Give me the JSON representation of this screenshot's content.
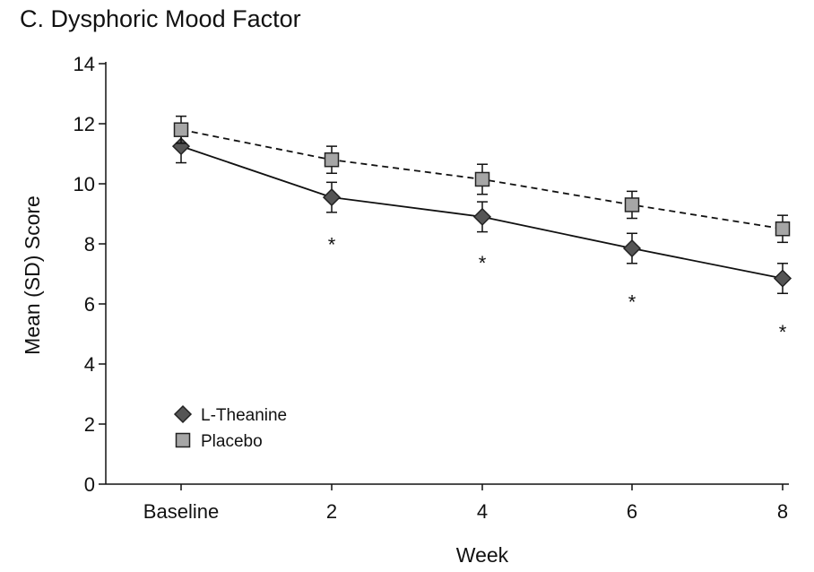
{
  "chart_data": {
    "type": "line",
    "title": "C. Dysphoric Mood Factor",
    "xlabel": "Week",
    "ylabel": "Mean (SD) Score",
    "categories": [
      "Baseline",
      "2",
      "4",
      "6",
      "8"
    ],
    "yticks": [
      "0",
      "2",
      "4",
      "6",
      "8",
      "10",
      "12",
      "14"
    ],
    "ylim": [
      0,
      14
    ],
    "grid": false,
    "legend_position": "bottom-left",
    "series": [
      {
        "name": "L-Theanine",
        "marker": "diamond",
        "line_style": "solid",
        "color": "#555555",
        "values": [
          11.25,
          9.55,
          8.9,
          7.85,
          6.85
        ],
        "sd": [
          0.55,
          0.5,
          0.5,
          0.5,
          0.5
        ]
      },
      {
        "name": "Placebo",
        "marker": "square",
        "line_style": "dashed",
        "color": "#a6a6a6",
        "values": [
          11.8,
          10.8,
          10.15,
          9.3,
          8.5
        ],
        "sd": [
          0.45,
          0.45,
          0.5,
          0.45,
          0.45
        ]
      }
    ],
    "annotations": [
      {
        "category": "2",
        "y": 8.1,
        "text": "*"
      },
      {
        "category": "4",
        "y": 7.5,
        "text": "*"
      },
      {
        "category": "6",
        "y": 6.2,
        "text": "*"
      },
      {
        "category": "8",
        "y": 5.2,
        "text": "*"
      }
    ]
  }
}
